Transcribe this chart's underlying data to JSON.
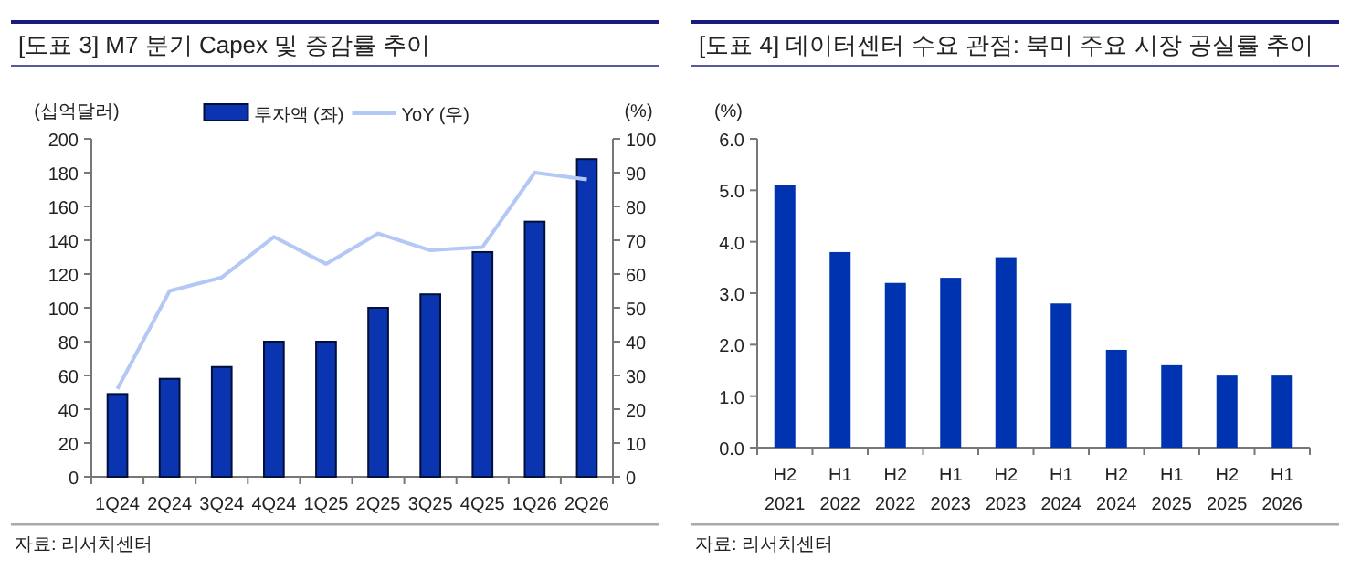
{
  "chart_data": [
    {
      "type": "bar",
      "title": "[도표 3] M7 분기 Capex 및 증감률 추이",
      "ylabel": "(십억달러)",
      "y2label": "(%)",
      "legend": "top",
      "categories": [
        "1Q24",
        "2Q24",
        "3Q24",
        "4Q24",
        "1Q25",
        "2Q25",
        "3Q25",
        "4Q25",
        "1Q26",
        "2Q26"
      ],
      "series": [
        {
          "name": "투자액 (좌)",
          "type": "bar",
          "color": "#0b35b0",
          "values": [
            49,
            58,
            65,
            80,
            80,
            100,
            108,
            133,
            151,
            188
          ]
        },
        {
          "name": "YoY (우)",
          "type": "line",
          "axis": "y2",
          "color": "#b4c8f5",
          "values": [
            26,
            55,
            59,
            71,
            63,
            72,
            67,
            68,
            90,
            88
          ]
        }
      ],
      "ylim": [
        0,
        200
      ],
      "yticks": [
        0,
        20,
        40,
        60,
        80,
        100,
        120,
        140,
        160,
        180,
        200
      ],
      "y2lim": [
        0,
        100
      ],
      "y2ticks": [
        0,
        10,
        20,
        30,
        40,
        50,
        60,
        70,
        80,
        90,
        100
      ],
      "annotations": [
        "자료: 리서치센터"
      ]
    },
    {
      "type": "bar",
      "title": "[도표 4] 데이터센터 수요 관점: 북미 주요 시장 공실률 추이",
      "ylabel": "(%)",
      "categories": [
        "H2\n2021",
        "H1\n2022",
        "H2\n2022",
        "H1\n2023",
        "H2\n2023",
        "H1\n2024",
        "H2\n2024",
        "H1\n2025",
        "H2\n2025",
        "H1\n2026"
      ],
      "series": [
        {
          "color": "#0033b0",
          "values": [
            5.1,
            3.8,
            3.2,
            3.3,
            3.7,
            2.8,
            1.9,
            1.6,
            1.4,
            1.4
          ]
        }
      ],
      "ylim": [
        0,
        6
      ],
      "yticks": [
        {
          "value": 0,
          "label": "0.0"
        },
        {
          "value": 1,
          "label": "1.0"
        },
        {
          "value": 2,
          "label": "2.0"
        },
        {
          "value": 3,
          "label": "3.0"
        },
        {
          "value": 4,
          "label": "4.0"
        },
        {
          "value": 5,
          "label": "5.0"
        },
        {
          "value": 6,
          "label": "6.0"
        }
      ],
      "annotations": [
        "자료: 리서치센터"
      ]
    }
  ]
}
